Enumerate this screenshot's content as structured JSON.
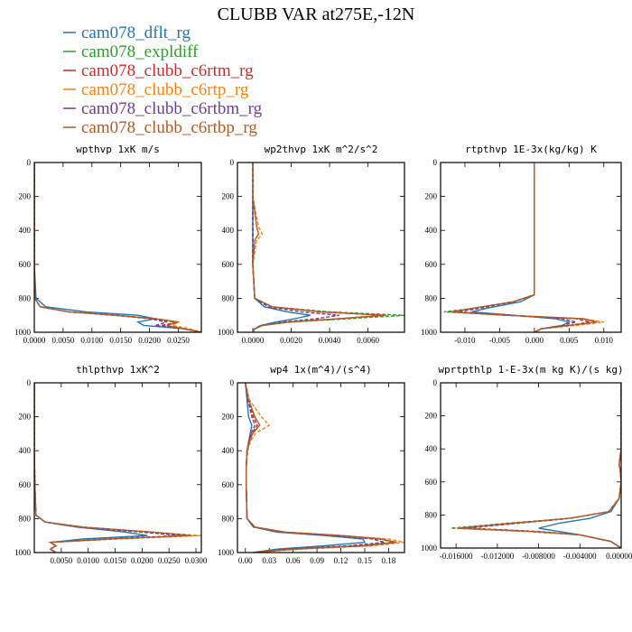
{
  "title": "CLUBB VAR at275E,-12N",
  "legend": [
    {
      "name": "cam078_dflt_rg",
      "color": "#1f77b4",
      "dash": "solid"
    },
    {
      "name": "cam078_expldiff",
      "color": "#2ca02c",
      "dash": "dashed"
    },
    {
      "name": "cam078_clubb_c6rtm_rg",
      "color": "#d62728",
      "dash": "dashed"
    },
    {
      "name": "cam078_clubb_c6rtp_rg",
      "color": "#ff7f0e",
      "dash": "dashed"
    },
    {
      "name": "cam078_clubb_c6rtbm_rg",
      "color": "#6a3d9a",
      "dash": "dashed"
    },
    {
      "name": "cam078_clubb_c6rtbp_rg",
      "color": "#b15928",
      "dash": "solid"
    }
  ],
  "chart_data": [
    {
      "type": "line",
      "title": "wpthvp  1xK m/s",
      "xlim": [
        0,
        0.029
      ],
      "ylim": [
        1000,
        0
      ],
      "xticks": [
        "0.0000",
        "0.0050",
        "0.0100",
        "0.0150",
        "0.0200",
        "0.0250"
      ],
      "xtick_values": [
        0,
        0.005,
        0.01,
        0.015,
        0.02,
        0.025
      ],
      "yticks": [
        0,
        200,
        400,
        600,
        800,
        1000
      ],
      "y": [
        0,
        200,
        400,
        600,
        800,
        850,
        880,
        900,
        920,
        940,
        960,
        980,
        1000
      ],
      "series": [
        {
          "values": [
            0,
            0,
            0,
            0,
            0.0003,
            0.002,
            0.009,
            0.018,
            0.021,
            0.018,
            0.019,
            0.026,
            0.029
          ]
        },
        {
          "values": [
            0,
            0,
            0,
            0,
            0.0001,
            0.001,
            0.006,
            0.014,
            0.021,
            0.024,
            0.023,
            0.026,
            0.029
          ]
        },
        {
          "values": [
            0,
            0,
            0,
            0,
            0.0001,
            0.001,
            0.006,
            0.014,
            0.021,
            0.025,
            0.022,
            0.026,
            0.029
          ]
        },
        {
          "values": [
            0,
            0,
            0,
            0,
            0.0001,
            0.001,
            0.006,
            0.014,
            0.021,
            0.025,
            0.024,
            0.027,
            0.029
          ]
        },
        {
          "values": [
            0,
            0,
            0,
            0,
            0.0001,
            0.001,
            0.006,
            0.014,
            0.02,
            0.023,
            0.021,
            0.026,
            0.029
          ]
        },
        {
          "values": [
            0,
            0,
            0,
            0,
            0.0001,
            0.001,
            0.006,
            0.014,
            0.021,
            0.025,
            0.023,
            0.026,
            0.029
          ]
        }
      ]
    },
    {
      "type": "line",
      "title": "wp2thvp  1xK m^2/s^2",
      "xlim": [
        -0.0008,
        0.0079
      ],
      "ylim": [
        1000,
        0
      ],
      "xticks": [
        "0.0000",
        "0.0020",
        "0.0040",
        "0.0060"
      ],
      "xtick_values": [
        0,
        0.002,
        0.004,
        0.006
      ],
      "yticks": [
        0,
        200,
        400,
        600,
        800,
        1000
      ],
      "y": [
        0,
        200,
        380,
        420,
        460,
        600,
        800,
        850,
        880,
        900,
        920,
        940,
        960,
        980,
        1000
      ],
      "series": [
        {
          "values": [
            0,
            0,
            0,
            0,
            0,
            0,
            0.0001,
            0.0006,
            0.0018,
            0.003,
            0.0022,
            0.0012,
            0.0004,
            0.0001,
            0
          ]
        },
        {
          "values": [
            0,
            0,
            0,
            0,
            0,
            0,
            0.0001,
            0.001,
            0.004,
            0.0079,
            0.005,
            0.002,
            0.0005,
            0.0001,
            0
          ]
        },
        {
          "values": [
            0,
            0,
            0,
            0,
            0,
            0,
            0.0001,
            0.001,
            0.0035,
            0.0068,
            0.0045,
            0.0018,
            0.0005,
            0.0001,
            0
          ]
        },
        {
          "values": [
            0,
            0,
            0.0003,
            0.0005,
            0.0002,
            0,
            0.0001,
            0.001,
            0.0035,
            0.007,
            0.0046,
            0.0019,
            0.0005,
            0.0001,
            0
          ]
        },
        {
          "values": [
            0,
            0,
            0,
            0,
            0,
            0,
            0.0001,
            0.0008,
            0.0025,
            0.0045,
            0.0033,
            0.0015,
            0.0004,
            0.0001,
            0
          ]
        },
        {
          "values": [
            0,
            0,
            0.0002,
            0.0003,
            0.0001,
            0,
            0.0001,
            0.001,
            0.0035,
            0.0069,
            0.0045,
            0.0018,
            0.0005,
            0.0001,
            0
          ]
        }
      ]
    },
    {
      "type": "line",
      "title": "rtpthvp  1E-3x(kg/kg) K",
      "xlim": [
        -0.0135,
        0.0125
      ],
      "ylim": [
        1000,
        0
      ],
      "xticks": [
        "-0.010",
        "-0.005",
        "0.000",
        "0.005",
        "0.010"
      ],
      "xtick_values": [
        -0.01,
        -0.005,
        0,
        0.005,
        0.01
      ],
      "yticks": [
        0,
        200,
        400,
        600,
        800,
        1000
      ],
      "y": [
        0,
        200,
        400,
        600,
        780,
        820,
        860,
        880,
        900,
        920,
        940,
        960,
        980,
        1000
      ],
      "series": [
        {
          "values": [
            0,
            0,
            0,
            0,
            0,
            -0.002,
            -0.007,
            -0.009,
            -0.003,
            0.003,
            0.005,
            0.004,
            0.001,
            0
          ]
        },
        {
          "values": [
            0,
            0,
            0,
            0,
            0,
            -0.003,
            -0.009,
            -0.013,
            -0.004,
            0.007,
            0.009,
            0.005,
            0.001,
            0
          ]
        },
        {
          "values": [
            0,
            0,
            0,
            0,
            0,
            -0.003,
            -0.009,
            -0.012,
            -0.004,
            0.006,
            0.008,
            0.005,
            0.001,
            0
          ]
        },
        {
          "values": [
            0,
            0,
            0,
            0,
            0,
            -0.003,
            -0.009,
            -0.012,
            -0.004,
            0.007,
            0.01,
            0.006,
            0.001,
            0
          ]
        },
        {
          "values": [
            0,
            0,
            0,
            0,
            0,
            -0.003,
            -0.008,
            -0.011,
            -0.003,
            0.004,
            0.006,
            0.004,
            0.001,
            0
          ]
        },
        {
          "values": [
            0,
            0,
            0,
            0,
            0,
            -0.003,
            -0.009,
            -0.012,
            -0.004,
            0.007,
            0.009,
            0.005,
            0.001,
            0
          ]
        }
      ]
    },
    {
      "type": "line",
      "title": "thlpthvp  1xK^2",
      "xlim": [
        0,
        0.031
      ],
      "ylim": [
        1000,
        0
      ],
      "xticks": [
        "0.0050",
        "0.0100",
        "0.0150",
        "0.0200",
        "0.0250",
        "0.0300"
      ],
      "xtick_values": [
        0.005,
        0.01,
        0.015,
        0.02,
        0.025,
        0.03
      ],
      "yticks": [
        0,
        200,
        400,
        600,
        800,
        1000
      ],
      "y": [
        0,
        200,
        400,
        600,
        780,
        820,
        850,
        880,
        900,
        920,
        940,
        960,
        980,
        1000
      ],
      "series": [
        {
          "values": [
            0,
            0,
            0,
            0.0001,
            0.0003,
            0.002,
            0.008,
            0.017,
            0.021,
            0.009,
            0.003,
            0.004,
            0.003,
            0.004
          ]
        },
        {
          "values": [
            0,
            0,
            0,
            0.0001,
            0.0003,
            0.002,
            0.009,
            0.022,
            0.03,
            0.015,
            0.003,
            0.004,
            0.003,
            0.004
          ]
        },
        {
          "values": [
            0,
            0,
            0,
            0.0001,
            0.0003,
            0.002,
            0.009,
            0.021,
            0.028,
            0.014,
            0.003,
            0.004,
            0.003,
            0.004
          ]
        },
        {
          "values": [
            0,
            0,
            0,
            0.0001,
            0.0003,
            0.002,
            0.009,
            0.022,
            0.031,
            0.015,
            0.003,
            0.004,
            0.003,
            0.004
          ]
        },
        {
          "values": [
            0,
            0,
            0,
            0.0001,
            0.0003,
            0.002,
            0.008,
            0.02,
            0.027,
            0.013,
            0.003,
            0.004,
            0.003,
            0.004
          ]
        },
        {
          "values": [
            0,
            0,
            0,
            0.0001,
            0.0003,
            0.002,
            0.009,
            0.022,
            0.029,
            0.014,
            0.003,
            0.004,
            0.003,
            0.004
          ]
        }
      ]
    },
    {
      "type": "line",
      "title": "wp4  1x(m^4)/(s^4)",
      "xlim": [
        -0.01,
        0.2
      ],
      "ylim": [
        1000,
        0
      ],
      "xticks": [
        "0.00",
        "0.03",
        "0.06",
        "0.09",
        "0.12",
        "0.15",
        "0.18"
      ],
      "xtick_values": [
        0,
        0.03,
        0.06,
        0.09,
        0.12,
        0.15,
        0.18
      ],
      "yticks": [
        0,
        200,
        400,
        600,
        800,
        1000
      ],
      "y": [
        0,
        100,
        200,
        250,
        300,
        350,
        400,
        500,
        600,
        800,
        850,
        880,
        900,
        920,
        940,
        960,
        980,
        1000
      ],
      "series": [
        {
          "values": [
            0,
            0.002,
            0.004,
            0.008,
            0.006,
            0.004,
            0.002,
            0.001,
            0.001,
            0.002,
            0.01,
            0.04,
            0.1,
            0.148,
            0.15,
            0.1,
            0.04,
            0.01
          ]
        },
        {
          "values": [
            0,
            0.003,
            0.01,
            0.015,
            0.008,
            0.005,
            0.002,
            0.001,
            0.001,
            0.002,
            0.012,
            0.05,
            0.12,
            0.17,
            0.185,
            0.14,
            0.06,
            0.01
          ]
        },
        {
          "values": [
            0,
            0.003,
            0.01,
            0.015,
            0.008,
            0.005,
            0.002,
            0.001,
            0.001,
            0.002,
            0.012,
            0.05,
            0.12,
            0.17,
            0.19,
            0.15,
            0.06,
            0.01
          ]
        },
        {
          "values": [
            0,
            0.005,
            0.02,
            0.03,
            0.012,
            0.006,
            0.003,
            0.001,
            0.001,
            0.002,
            0.012,
            0.05,
            0.12,
            0.18,
            0.2,
            0.16,
            0.07,
            0.01
          ]
        },
        {
          "values": [
            0,
            0.003,
            0.008,
            0.012,
            0.007,
            0.004,
            0.002,
            0.001,
            0.001,
            0.002,
            0.011,
            0.048,
            0.11,
            0.16,
            0.175,
            0.13,
            0.05,
            0.01
          ]
        },
        {
          "values": [
            0,
            0.004,
            0.012,
            0.018,
            0.009,
            0.005,
            0.002,
            0.001,
            0.001,
            0.002,
            0.012,
            0.05,
            0.12,
            0.17,
            0.19,
            0.15,
            0.06,
            0.01
          ]
        }
      ]
    },
    {
      "type": "line",
      "title": "wprtpthlp  1-E-3x(m kg K)/(s kg)",
      "xlim": [
        -0.0175,
        0.0
      ],
      "ylim": [
        1000,
        0
      ],
      "xticks": [
        "-0.016000",
        "-0.012000",
        "-0.008000",
        "-0.004000",
        "0.000000"
      ],
      "xtick_values": [
        -0.016,
        -0.012,
        -0.008,
        -0.004,
        0
      ],
      "yticks": [
        0,
        200,
        400,
        600,
        800,
        1000
      ],
      "y": [
        0,
        200,
        400,
        500,
        520,
        600,
        700,
        780,
        820,
        850,
        880,
        900,
        920,
        960,
        1000
      ],
      "series": [
        {
          "values": [
            0,
            0,
            0,
            -0.0002,
            -0.0001,
            0,
            -0.0002,
            -0.001,
            -0.003,
            -0.006,
            -0.008,
            -0.006,
            -0.004,
            -0.001,
            0
          ]
        },
        {
          "values": [
            0,
            0,
            0,
            -0.0002,
            -0.0001,
            0,
            -0.0002,
            -0.0012,
            -0.005,
            -0.011,
            -0.0165,
            -0.009,
            -0.004,
            -0.001,
            0
          ]
        },
        {
          "values": [
            0,
            0,
            0,
            -0.0002,
            -0.0001,
            0,
            -0.0002,
            -0.0012,
            -0.005,
            -0.01,
            -0.015,
            -0.008,
            -0.004,
            -0.001,
            0
          ]
        },
        {
          "values": [
            0,
            0,
            0,
            -0.0002,
            -0.0001,
            0,
            -0.0002,
            -0.0012,
            -0.005,
            -0.01,
            -0.016,
            -0.009,
            -0.004,
            -0.001,
            0
          ]
        },
        {
          "values": [
            0,
            0,
            0,
            -0.0002,
            -0.0001,
            0,
            -0.0002,
            -0.0012,
            -0.005,
            -0.01,
            -0.015,
            -0.008,
            -0.004,
            -0.001,
            0
          ]
        },
        {
          "values": [
            0,
            0,
            0,
            -0.0002,
            -0.0001,
            0,
            -0.0002,
            -0.0012,
            -0.005,
            -0.0105,
            -0.0158,
            -0.0085,
            -0.004,
            -0.001,
            0
          ]
        }
      ]
    }
  ]
}
